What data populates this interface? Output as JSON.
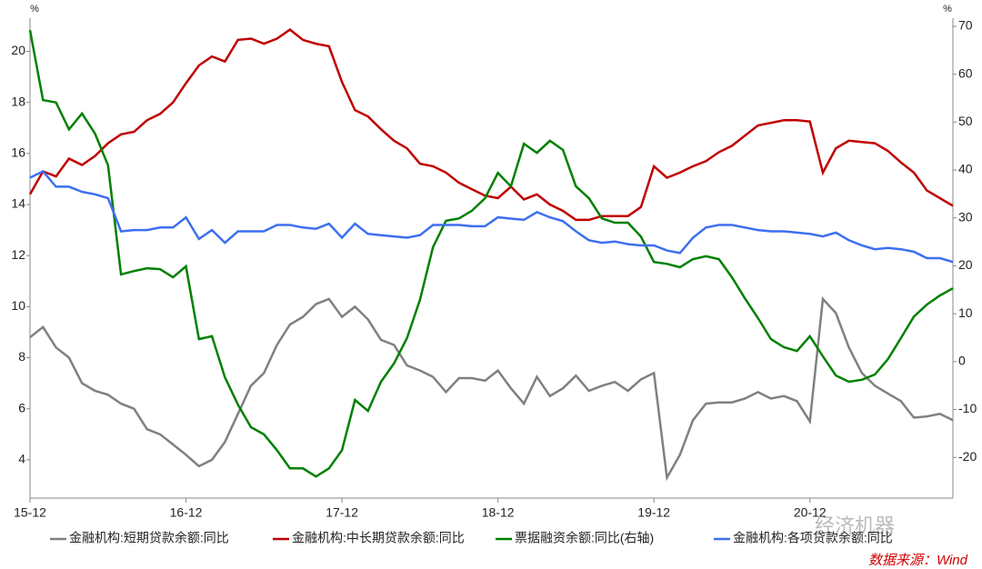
{
  "chart_data": {
    "type": "line",
    "y_unit": "%",
    "y2_unit": "%",
    "categories": [
      "15-12",
      null,
      null,
      null,
      null,
      null,
      null,
      null,
      null,
      null,
      null,
      null,
      "16-12",
      null,
      null,
      null,
      null,
      null,
      null,
      null,
      null,
      null,
      null,
      null,
      "17-12",
      null,
      null,
      null,
      null,
      null,
      null,
      null,
      null,
      null,
      null,
      null,
      "18-12",
      null,
      null,
      null,
      null,
      null,
      null,
      null,
      null,
      null,
      null,
      null,
      "19-12",
      null,
      null,
      null,
      null,
      null,
      null,
      null,
      null,
      null,
      null,
      null,
      "20-12",
      null,
      null,
      null,
      null,
      null,
      null,
      null,
      null,
      null,
      null,
      null
    ],
    "ylim": [
      2.5,
      21.3
    ],
    "yticks": [
      4,
      6,
      8,
      10,
      12,
      14,
      16,
      18,
      20
    ],
    "y2lim": [
      -28.5,
      71.7
    ],
    "y2ticks": [
      -20,
      -10,
      0,
      10,
      20,
      30,
      40,
      50,
      60,
      70
    ],
    "series": [
      {
        "name": "金融机构:短期贷款余额:同比",
        "color": "#808080",
        "values": [
          8.8,
          9.2,
          8.4,
          8.0,
          7.0,
          6.7,
          6.55,
          6.2,
          6.0,
          5.2,
          5.0,
          4.6,
          4.2,
          3.75,
          4.0,
          4.7,
          5.8,
          6.9,
          7.4,
          8.5,
          9.3,
          9.6,
          10.1,
          10.3,
          9.6,
          10.0,
          9.5,
          8.7,
          8.5,
          7.7,
          7.5,
          7.25,
          6.65,
          7.2,
          7.2,
          7.1,
          7.5,
          6.8,
          6.2,
          7.25,
          6.5,
          6.8,
          7.3,
          6.7,
          6.9,
          7.05,
          6.7,
          7.15,
          7.4,
          3.3,
          4.2,
          5.55,
          6.2,
          6.25,
          6.25,
          6.4,
          6.65,
          6.4,
          6.5,
          6.3,
          5.5,
          10.3,
          9.75,
          8.4,
          7.4,
          6.9,
          6.6,
          6.3,
          5.65,
          5.7,
          5.8,
          5.55
        ]
      },
      {
        "name": "金融机构:中长期贷款余额:同比",
        "color": "#c00000",
        "values": [
          14.4,
          15.3,
          15.1,
          15.8,
          15.55,
          15.9,
          16.4,
          16.75,
          16.85,
          17.3,
          17.55,
          18.0,
          18.75,
          19.45,
          19.8,
          19.6,
          20.45,
          20.5,
          20.3,
          20.5,
          20.85,
          20.45,
          20.3,
          20.2,
          18.8,
          17.7,
          17.45,
          16.95,
          16.5,
          16.2,
          15.6,
          15.5,
          15.25,
          14.85,
          14.6,
          14.35,
          14.25,
          14.7,
          14.2,
          14.4,
          14.0,
          13.75,
          13.4,
          13.4,
          13.55,
          13.55,
          13.55,
          13.9,
          15.5,
          15.05,
          15.25,
          15.5,
          15.7,
          16.05,
          16.3,
          16.7,
          17.1,
          17.2,
          17.3,
          17.3,
          17.25,
          15.25,
          16.2,
          16.5,
          16.45,
          16.4,
          16.1,
          15.65,
          15.25,
          14.55,
          14.25,
          13.95
        ]
      },
      {
        "name": "票据融资余额:同比(右轴)",
        "color": "#008000",
        "axis": "y2",
        "values": [
          69.2,
          54.6,
          54.1,
          48.5,
          51.8,
          47.6,
          41.0,
          18.2,
          18.9,
          19.5,
          19.3,
          17.6,
          19.9,
          4.7,
          5.3,
          -3.3,
          -9.0,
          -13.7,
          -15.2,
          -18.5,
          -22.3,
          -22.3,
          -24.0,
          -22.3,
          -18.5,
          -8.0,
          -10.3,
          -4.2,
          -0.4,
          4.9,
          12.9,
          23.9,
          29.4,
          29.9,
          31.5,
          34.1,
          39.4,
          36.6,
          45.5,
          43.6,
          46.1,
          44.2,
          36.6,
          34.1,
          29.9,
          29.0,
          29.0,
          26.1,
          20.8,
          20.4,
          19.7,
          21.4,
          22.0,
          21.4,
          17.6,
          13.2,
          9.1,
          4.7,
          3.0,
          2.2,
          5.3,
          1.1,
          -2.9,
          -4.2,
          -3.8,
          -2.7,
          0.5,
          4.9,
          9.4,
          11.9,
          13.8,
          15.3
        ]
      },
      {
        "name": "金融机构:各项贷款余额:同比",
        "color": "#3d6ff0",
        "values": [
          15.05,
          15.3,
          14.7,
          14.7,
          14.5,
          14.4,
          14.25,
          12.95,
          13.0,
          13.0,
          13.1,
          13.1,
          13.5,
          12.65,
          13.0,
          12.5,
          12.95,
          12.95,
          12.95,
          13.2,
          13.2,
          13.1,
          13.05,
          13.25,
          12.7,
          13.25,
          12.85,
          12.8,
          12.75,
          12.7,
          12.8,
          13.2,
          13.2,
          13.2,
          13.15,
          13.15,
          13.5,
          13.45,
          13.4,
          13.7,
          13.5,
          13.35,
          12.95,
          12.6,
          12.5,
          12.55,
          12.45,
          12.4,
          12.4,
          12.2,
          12.1,
          12.7,
          13.1,
          13.2,
          13.2,
          13.1,
          13.0,
          12.95,
          12.95,
          12.9,
          12.85,
          12.75,
          12.9,
          12.6,
          12.4,
          12.25,
          12.3,
          12.25,
          12.15,
          11.9,
          11.9,
          11.75
        ]
      }
    ],
    "watermark": "经济机器",
    "source": "数据来源：Wind"
  }
}
